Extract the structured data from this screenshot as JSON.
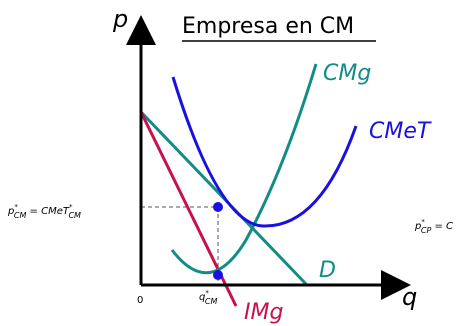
{
  "title": "Empresa en CM",
  "axes": {
    "y_label": "p",
    "x_label": "q",
    "origin_label": "0"
  },
  "curves": {
    "cmg": {
      "label": "CMg",
      "color": "#138c86"
    },
    "cmet": {
      "label": "CMeT",
      "color": "#1a10e0"
    },
    "d": {
      "label": "D",
      "color": "#138c86"
    },
    "img": {
      "label": "IMg",
      "color": "#c8104e"
    }
  },
  "annotations": {
    "price_cm": {
      "left": "p",
      "sub": "CM",
      "mid": " = CMeT",
      "sub2": "CM"
    },
    "qty_cm": {
      "left": "q",
      "sub": "CM"
    },
    "price_cp_partial": {
      "left": "p",
      "sub": "CP",
      "mid": " = C"
    }
  },
  "colors": {
    "point": "#1a10e0",
    "axis": "#000000",
    "guide": "#555555"
  }
}
